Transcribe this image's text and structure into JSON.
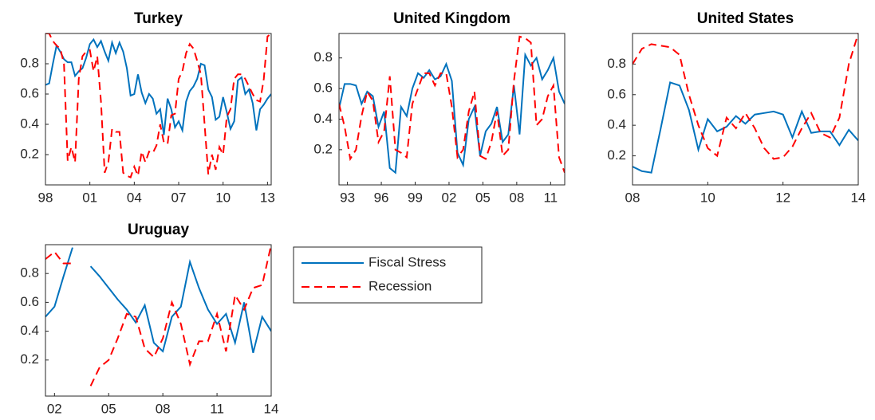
{
  "chart_data": [
    {
      "type": "line",
      "title": "Turkey",
      "xlim": [
        1998,
        2013.25
      ],
      "ylim": [
        0,
        1
      ],
      "xticks": [
        {
          "value": 1998,
          "label": "98"
        },
        {
          "value": 2001,
          "label": "01"
        },
        {
          "value": 2004,
          "label": "04"
        },
        {
          "value": 2007,
          "label": "07"
        },
        {
          "value": 2010,
          "label": "10"
        },
        {
          "value": 2013,
          "label": "13"
        }
      ],
      "yticks": [
        0.2,
        0.4,
        0.6,
        0.8
      ],
      "x": [
        1998,
        1998.25,
        1998.5,
        1998.75,
        1999,
        1999.25,
        1999.5,
        1999.75,
        2000,
        2000.25,
        2000.5,
        2000.75,
        2001,
        2001.25,
        2001.5,
        2001.75,
        2002,
        2002.25,
        2002.5,
        2002.75,
        2003,
        2003.25,
        2003.5,
        2003.75,
        2004,
        2004.25,
        2004.5,
        2004.75,
        2005,
        2005.25,
        2005.5,
        2005.75,
        2006,
        2006.25,
        2006.5,
        2006.75,
        2007,
        2007.25,
        2007.5,
        2007.75,
        2008,
        2008.25,
        2008.5,
        2008.75,
        2009,
        2009.25,
        2009.5,
        2009.75,
        2010,
        2010.25,
        2010.5,
        2010.75,
        2011,
        2011.25,
        2011.5,
        2011.75,
        2012,
        2012.25,
        2012.5,
        2012.75,
        2013,
        2013.25
      ],
      "series": [
        {
          "color": "#0072bd",
          "line_style": "solid",
          "values": [
            0.66,
            0.67,
            0.8,
            0.92,
            0.88,
            0.83,
            0.81,
            0.81,
            0.72,
            0.75,
            0.77,
            0.84,
            0.93,
            0.96,
            0.91,
            0.95,
            0.88,
            0.82,
            0.94,
            0.87,
            0.94,
            0.88,
            0.77,
            0.59,
            0.6,
            0.73,
            0.61,
            0.54,
            0.6,
            0.57,
            0.47,
            0.5,
            0.33,
            0.57,
            0.5,
            0.38,
            0.42,
            0.36,
            0.55,
            0.62,
            0.65,
            0.7,
            0.8,
            0.79,
            0.63,
            0.58,
            0.43,
            0.45,
            0.58,
            0.48,
            0.37,
            0.42,
            0.69,
            0.71,
            0.6,
            0.63,
            0.54,
            0.36,
            0.5,
            0.53,
            0.57,
            0.6
          ]
        },
        {
          "color": "#ff0000",
          "line_style": "dashed",
          "values": [
            1.0,
            1.0,
            0.95,
            0.92,
            0.9,
            0.8,
            0.16,
            0.25,
            0.15,
            0.7,
            0.85,
            0.88,
            0.89,
            0.75,
            0.85,
            0.55,
            0.08,
            0.15,
            0.37,
            0.35,
            0.35,
            0.08,
            0.06,
            0.05,
            0.12,
            0.06,
            0.22,
            0.15,
            0.22,
            0.21,
            0.26,
            0.4,
            0.28,
            0.27,
            0.46,
            0.47,
            0.7,
            0.75,
            0.87,
            0.93,
            0.9,
            0.82,
            0.73,
            0.4,
            0.07,
            0.2,
            0.1,
            0.25,
            0.2,
            0.45,
            0.5,
            0.7,
            0.73,
            0.73,
            0.7,
            0.65,
            0.6,
            0.56,
            0.55,
            0.7,
            0.98,
            1.0
          ]
        }
      ]
    },
    {
      "type": "line",
      "title": "United Kingdom",
      "xlim": [
        1992.25,
        2012.25
      ],
      "ylim": [
        -0.03,
        0.96
      ],
      "xticks": [
        {
          "value": 1993,
          "label": "93"
        },
        {
          "value": 1996,
          "label": "96"
        },
        {
          "value": 1999,
          "label": "99"
        },
        {
          "value": 2002,
          "label": "02"
        },
        {
          "value": 2005,
          "label": "05"
        },
        {
          "value": 2008,
          "label": "08"
        },
        {
          "value": 2011,
          "label": "11"
        }
      ],
      "yticks": [
        0.2,
        0.4,
        0.6,
        0.8
      ],
      "x": [
        1992.25,
        1992.75,
        1993.25,
        1993.75,
        1994.25,
        1994.75,
        1995.25,
        1995.75,
        1996.25,
        1996.75,
        1997.25,
        1997.75,
        1998.25,
        1998.75,
        1999.25,
        1999.75,
        2000.25,
        2000.75,
        2001.25,
        2001.75,
        2002.25,
        2002.75,
        2003.25,
        2003.75,
        2004.25,
        2004.75,
        2005.25,
        2005.75,
        2006.25,
        2006.75,
        2007.25,
        2007.75,
        2008.25,
        2008.75,
        2009.25,
        2009.75,
        2010.25,
        2010.75,
        2011.25,
        2011.75,
        2012.25
      ],
      "series": [
        {
          "color": "#0072bd",
          "line_style": "solid",
          "values": [
            0.47,
            0.63,
            0.63,
            0.62,
            0.5,
            0.58,
            0.55,
            0.35,
            0.45,
            0.08,
            0.05,
            0.48,
            0.42,
            0.6,
            0.7,
            0.67,
            0.72,
            0.66,
            0.68,
            0.76,
            0.65,
            0.18,
            0.1,
            0.4,
            0.48,
            0.16,
            0.32,
            0.37,
            0.48,
            0.25,
            0.3,
            0.62,
            0.3,
            0.82,
            0.75,
            0.8,
            0.66,
            0.72,
            0.8,
            0.58,
            0.5
          ]
        },
        {
          "color": "#ff0000",
          "line_style": "dashed",
          "values": [
            0.5,
            0.35,
            0.14,
            0.2,
            0.42,
            0.58,
            0.52,
            0.25,
            0.32,
            0.68,
            0.2,
            0.18,
            0.15,
            0.5,
            0.6,
            0.7,
            0.7,
            0.62,
            0.7,
            0.7,
            0.48,
            0.15,
            0.2,
            0.45,
            0.58,
            0.16,
            0.14,
            0.25,
            0.45,
            0.16,
            0.2,
            0.65,
            0.94,
            0.93,
            0.9,
            0.36,
            0.4,
            0.55,
            0.62,
            0.15,
            0.05
          ]
        }
      ]
    },
    {
      "type": "line",
      "title": "United States",
      "xlim": [
        2008,
        2014
      ],
      "ylim": [
        0.01,
        1.0
      ],
      "xticks": [
        {
          "value": 2008,
          "label": "08"
        },
        {
          "value": 2010,
          "label": "10"
        },
        {
          "value": 2012,
          "label": "12"
        },
        {
          "value": 2014,
          "label": "14"
        }
      ],
      "yticks": [
        0.2,
        0.4,
        0.6,
        0.8
      ],
      "x": [
        2008,
        2008.25,
        2008.5,
        2008.75,
        2009,
        2009.25,
        2009.5,
        2009.75,
        2010,
        2010.25,
        2010.5,
        2010.75,
        2011,
        2011.25,
        2011.5,
        2011.75,
        2012,
        2012.25,
        2012.5,
        2012.75,
        2013,
        2013.25,
        2013.5,
        2013.75,
        2014
      ],
      "series": [
        {
          "color": "#0072bd",
          "line_style": "solid",
          "values": [
            0.13,
            0.1,
            0.09,
            0.38,
            0.68,
            0.66,
            0.5,
            0.24,
            0.44,
            0.36,
            0.39,
            0.46,
            0.41,
            0.47,
            0.48,
            0.49,
            0.47,
            0.32,
            0.49,
            0.35,
            0.36,
            0.36,
            0.27,
            0.37,
            0.3
          ]
        },
        {
          "color": "#ff0000",
          "line_style": "dashed",
          "values": [
            0.8,
            0.9,
            0.93,
            0.92,
            0.91,
            0.86,
            0.6,
            0.4,
            0.25,
            0.2,
            0.45,
            0.38,
            0.48,
            0.38,
            0.25,
            0.18,
            0.19,
            0.26,
            0.38,
            0.48,
            0.35,
            0.32,
            0.45,
            0.8,
            1.0
          ]
        }
      ]
    },
    {
      "type": "line",
      "title": "Uruguay",
      "xlim": [
        2001.5,
        2014
      ],
      "ylim": [
        -0.05,
        1.0
      ],
      "legend": true,
      "xticks": [
        {
          "value": 2002,
          "label": "02"
        },
        {
          "value": 2005,
          "label": "05"
        },
        {
          "value": 2008,
          "label": "08"
        },
        {
          "value": 2011,
          "label": "11"
        },
        {
          "value": 2014,
          "label": "14"
        }
      ],
      "yticks": [
        0.2,
        0.4,
        0.6,
        0.8
      ],
      "x": [
        2001.5,
        2002,
        2002.5,
        2003,
        2003.5,
        2004,
        2004.5,
        2005,
        2005.5,
        2006,
        2006.5,
        2007,
        2007.5,
        2008,
        2008.5,
        2009,
        2009.5,
        2010,
        2010.5,
        2011,
        2011.5,
        2012,
        2012.5,
        2013,
        2013.5,
        2014
      ],
      "series": [
        {
          "name": "Fiscal Stress",
          "color": "#0072bd",
          "line_style": "solid",
          "values": [
            0.5,
            0.57,
            0.78,
            0.98,
            null,
            0.85,
            0.78,
            0.7,
            0.62,
            0.55,
            0.46,
            0.58,
            0.32,
            0.26,
            0.5,
            0.57,
            0.88,
            0.7,
            0.55,
            0.45,
            0.52,
            0.32,
            0.6,
            0.25,
            0.5,
            0.4
          ]
        },
        {
          "name": "Recession",
          "color": "#ff0000",
          "line_style": "dashed",
          "values": [
            0.9,
            0.95,
            0.87,
            0.87,
            null,
            0.02,
            0.15,
            0.2,
            0.35,
            0.52,
            0.5,
            0.28,
            0.22,
            0.35,
            0.6,
            0.45,
            0.17,
            0.33,
            0.33,
            0.52,
            0.26,
            0.65,
            0.55,
            0.7,
            0.72,
            1.0
          ]
        }
      ]
    }
  ]
}
